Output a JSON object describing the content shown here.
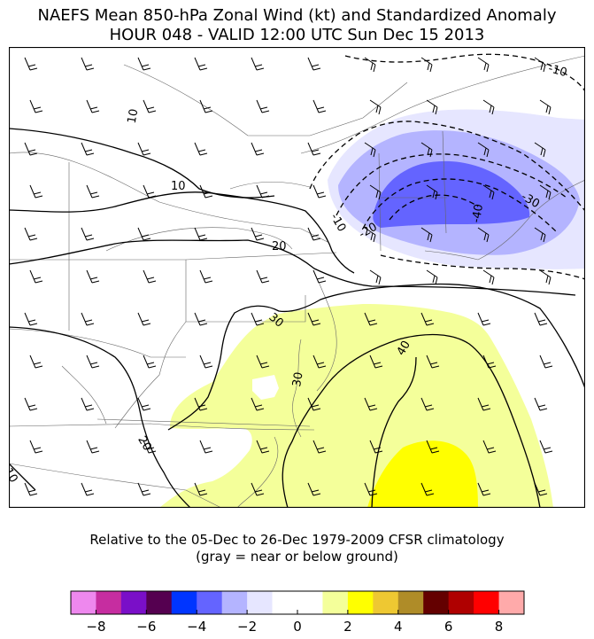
{
  "title": {
    "line1": "NAEFS Mean 850-hPa Zonal Wind (kt) and Standardized Anomaly",
    "line2": "HOUR 048 - VALID 12:00 UTC Sun Dec 15 2013"
  },
  "caption": {
    "line1": "Relative to the 05-Dec to 26-Dec 1979-2009 CFSR climatology",
    "line2": "(gray = near or below ground)"
  },
  "contour_labels": [
    "10",
    "10",
    "20",
    "30",
    "30",
    "40",
    "20",
    "10",
    "-10",
    "-20",
    "-30",
    "-40",
    "-10"
  ],
  "colorbar": {
    "colors": [
      "#ee88ee",
      "#c62da0",
      "#7a0fc8",
      "#550050",
      "#0035ff",
      "#6464ff",
      "#b4b4ff",
      "#e6e6ff",
      "#ffffff",
      "#ffffff",
      "#f4ff9a",
      "#ffff00",
      "#eec832",
      "#af8c28",
      "#640000",
      "#af0000",
      "#ff0000",
      "#ffaaaa"
    ],
    "tick_labels": [
      "−8",
      "−6",
      "−4",
      "−2",
      "0",
      "2",
      "4",
      "6",
      "8"
    ],
    "range": [
      -9,
      9
    ]
  },
  "shading_colors": {
    "neg_1": "#e6e6ff",
    "neg_2": "#b4b4ff",
    "neg_3": "#6464ff",
    "pos_1": "#f4ff9a",
    "pos_2": "#ffff00"
  }
}
